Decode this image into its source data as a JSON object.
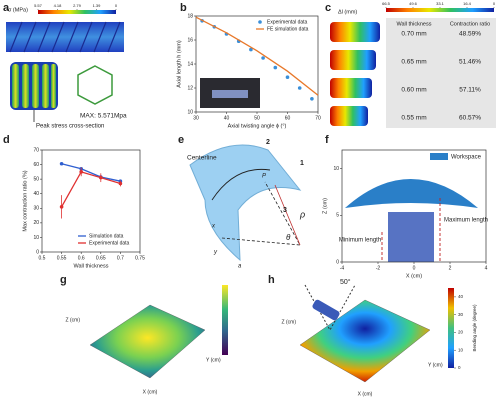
{
  "panels": {
    "a": {
      "letter": "a",
      "colorbar_title": "σ (MPa)",
      "colorbar_ticks": [
        5.57,
        4.18,
        2.79,
        1.39,
        0
      ],
      "callout": "Peak stress cross-section",
      "max_label": "MAX: 5.571Mpa"
    },
    "b": {
      "letter": "b",
      "chart": {
        "type": "scatter",
        "xlabel": "Axial twisting angle ϕ (°)",
        "ylabel": "Axial length h (mm)",
        "xlim": [
          30,
          70
        ],
        "xticks": [
          30,
          40,
          50,
          60,
          70
        ],
        "ylim": [
          10,
          18
        ],
        "yticks": [
          10,
          12,
          14,
          16,
          18
        ],
        "legend": "upper right",
        "series": [
          {
            "name": "Experimental data",
            "color": "#3a8fd9",
            "mode": "markers",
            "x": [
              32,
              36,
              40,
              44,
              48,
              52,
              56,
              60,
              64,
              68
            ],
            "values": [
              17.6,
              17.1,
              16.5,
              15.9,
              15.2,
              14.5,
              13.7,
              12.9,
              12.0,
              11.1
            ]
          },
          {
            "name": "FE simulation data",
            "color": "#e8782a",
            "mode": "line",
            "x": [
              30,
              40,
              50,
              60,
              70
            ],
            "values": [
              17.9,
              16.6,
              15.1,
              13.4,
              11.4
            ]
          }
        ]
      }
    },
    "c": {
      "letter": "c",
      "colorbar_title": "Δl (mm)",
      "colorbar_ticks": [
        66.5,
        49.6,
        33.1,
        16.4,
        0
      ],
      "table": {
        "header": [
          "Wall thickness",
          "Contraction ratio"
        ],
        "rows": [
          [
            "0.70 mm",
            "48.59%"
          ],
          [
            "0.65 mm",
            "51.46%"
          ],
          [
            "0.60 mm",
            "57.11%"
          ],
          [
            "0.55 mm",
            "60.57%"
          ]
        ]
      }
    },
    "d": {
      "letter": "d",
      "chart": {
        "type": "line",
        "xlabel": "Wall thickness",
        "ylabel": "Max contraction ratio (%)",
        "xlim": [
          0.5,
          0.75
        ],
        "xticks": [
          0.5,
          0.55,
          0.6,
          0.65,
          0.7,
          0.75
        ],
        "ylim": [
          0,
          70
        ],
        "yticks": [
          0,
          10,
          20,
          30,
          40,
          50,
          60,
          70
        ],
        "legend": "lower right",
        "series": [
          {
            "name": "Simulation data",
            "color": "#2f5fd0",
            "mode": "line+markers",
            "x": [
              0.55,
              0.6,
              0.65,
              0.7
            ],
            "values": [
              60.57,
              57.11,
              51.46,
              48.59
            ]
          },
          {
            "name": "Experimental data",
            "color": "#e03030",
            "mode": "line+markers",
            "x": [
              0.55,
              0.6,
              0.65,
              0.7
            ],
            "values": [
              31,
              55,
              51,
              47
            ],
            "errors": [
              8,
              3,
              3,
              2
            ]
          }
        ]
      }
    },
    "e": {
      "letter": "e",
      "centerline": "Centerline",
      "n1": "1",
      "n2": "2",
      "n3": "3",
      "rho": "ρ",
      "theta": "θ",
      "p": "P",
      "a": "a",
      "x": "x",
      "y": "y"
    },
    "f": {
      "letter": "f",
      "chart": {
        "type": "axes",
        "xlabel": "X (cm)",
        "ylabel": "Z (cm)",
        "xlim": [
          -4,
          4
        ],
        "xticks": [
          -4,
          -2,
          0,
          2,
          4
        ],
        "ylim": [
          0,
          12
        ],
        "yticks": [
          0,
          5,
          10
        ]
      },
      "legend": "Workspace",
      "min_label": "Minimum length",
      "max_label": "Maximum length"
    },
    "g": {
      "letter": "g",
      "xlabel": "X (cm)",
      "ylabel": "Y (cm)",
      "zlabel": "Z (cm)"
    },
    "h": {
      "letter": "h",
      "angle": "50°",
      "xlabel": "X (cm)",
      "ylabel": "Y (cm)",
      "zlabel": "Z (cm)",
      "colorbar_title": "Bending angle (degree)",
      "colorbar_ticks": [
        0,
        10,
        20,
        30,
        40
      ]
    }
  }
}
